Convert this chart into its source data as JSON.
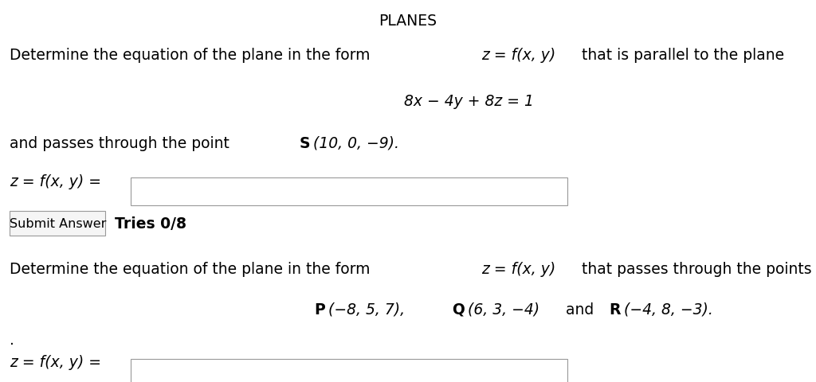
{
  "title": "PLANES",
  "bg_color": "#ffffff",
  "text_color": "#000000",
  "body_fontsize": 13.5,
  "fig_width": 10.24,
  "fig_height": 4.81,
  "line1_pre": "Determine the equation of the plane in the form ",
  "line1_math": "z = f(x, y)",
  "line1_post": " that is parallel to the plane",
  "line2_math": "8x − 4y + 8z = 1",
  "line3_pre": "and passes through the point ",
  "line3_bold": "S",
  "line3_math": "(10, 0, −9).",
  "line4_pre": "Determine the equation of the plane in the form ",
  "line4_math": "z = f(x, y)",
  "line4_post": " that passes through the points",
  "line5_P": "P",
  "line5_Pmath": "(−8, 5, 7),",
  "line5_Q": "Q",
  "line5_Qmath": "(6, 3, −4)",
  "line5_and": " and ",
  "line5_R": "R",
  "line5_Rmath": "(−4, 8, −3).",
  "label_math": "z = f(x, y) =",
  "submit_btn": "Submit Answer",
  "tries": "Tries 0/8",
  "dot": "."
}
